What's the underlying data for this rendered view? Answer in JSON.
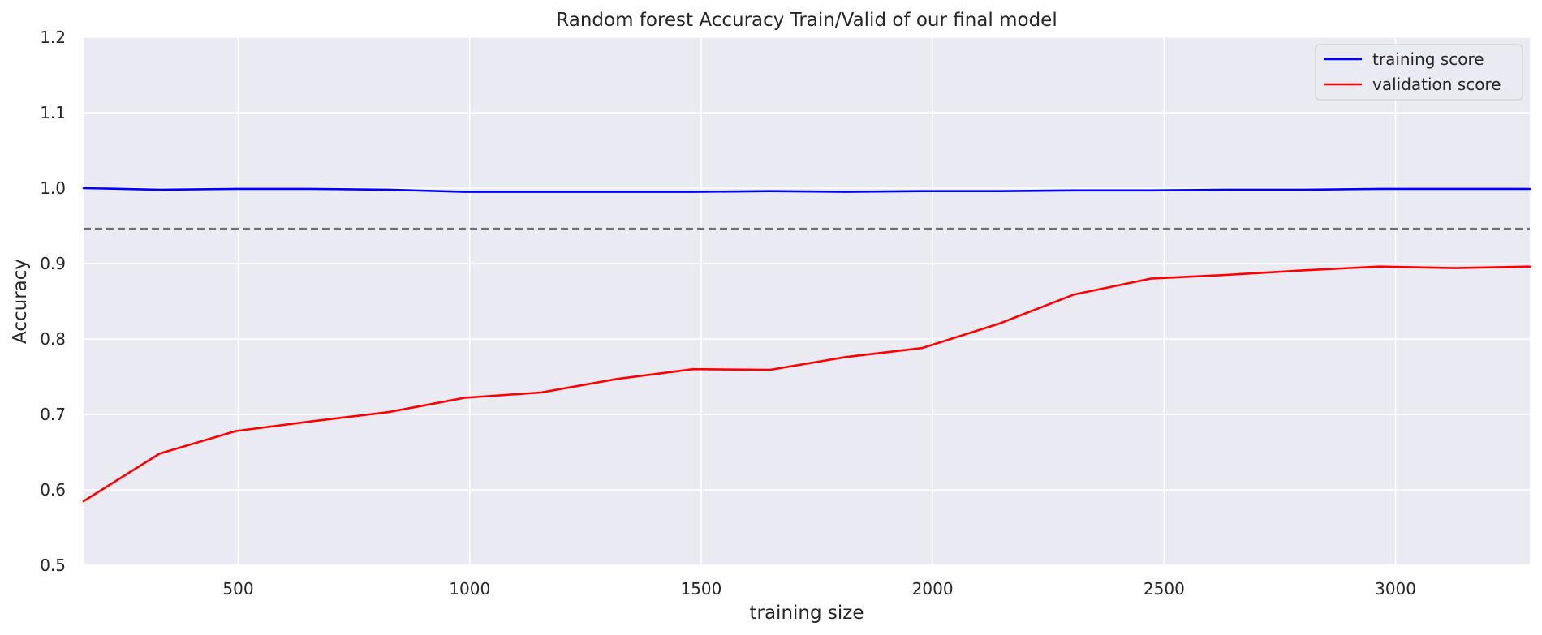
{
  "chart_data": {
    "type": "line",
    "title": "Random forest Accuracy Train/Valid of our final model",
    "xlabel": "training size",
    "ylabel": "Accuracy",
    "xlim": [
      166,
      3290
    ],
    "ylim": [
      0.5,
      1.2
    ],
    "xticks": [
      500,
      1000,
      1500,
      2000,
      2500,
      3000
    ],
    "yticks": [
      0.5,
      0.6,
      0.7,
      0.8,
      0.9,
      1.0,
      1.1,
      1.2
    ],
    "grid": true,
    "legend_position": "top-right",
    "x": [
      166,
      330,
      495,
      660,
      824,
      989,
      1154,
      1318,
      1483,
      1648,
      1812,
      1977,
      2142,
      2306,
      2471,
      2636,
      2800,
      2965,
      3130,
      3290
    ],
    "series": [
      {
        "name": "training score",
        "color": "#0000ff",
        "values": [
          1.0,
          0.998,
          0.999,
          0.999,
          0.998,
          0.995,
          0.995,
          0.995,
          0.995,
          0.996,
          0.995,
          0.996,
          0.996,
          0.997,
          0.997,
          0.998,
          0.998,
          0.999,
          0.999,
          0.999
        ]
      },
      {
        "name": "validation score",
        "color": "#ff0000",
        "values": [
          0.585,
          0.648,
          0.678,
          0.691,
          0.703,
          0.722,
          0.729,
          0.747,
          0.76,
          0.759,
          0.776,
          0.788,
          0.82,
          0.859,
          0.88,
          0.885,
          0.891,
          0.896,
          0.894,
          0.896
        ]
      }
    ],
    "reference_line": {
      "y": 0.946,
      "style": "dashed",
      "color": "#707070"
    }
  }
}
